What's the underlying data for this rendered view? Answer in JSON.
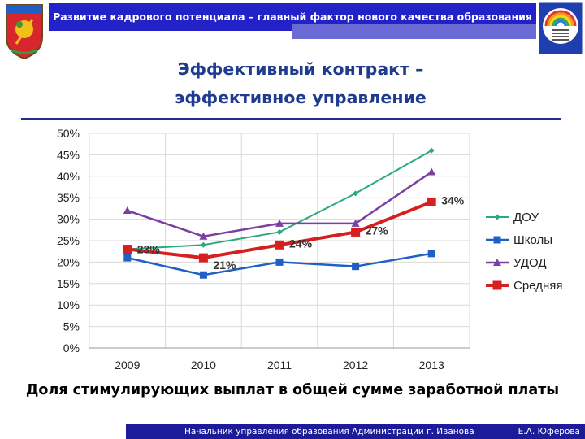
{
  "header": {
    "text": "Развитие кадрового потенциала – главный фактор нового качества образования"
  },
  "slide": {
    "title_line1": "Эффективный контракт –",
    "title_line2": "эффективное управление"
  },
  "chart_data": {
    "type": "line",
    "categories": [
      "2009",
      "2010",
      "2011",
      "2012",
      "2013"
    ],
    "ylim": [
      0,
      50
    ],
    "yticks": [
      "0%",
      "5%",
      "10%",
      "15%",
      "20%",
      "25%",
      "30%",
      "35%",
      "40%",
      "45%",
      "50%"
    ],
    "grid": true,
    "legend_position": "right",
    "series": [
      {
        "name": "ДОУ",
        "color": "#2aa880",
        "marker": "diamond",
        "values": [
          23,
          24,
          27,
          36,
          46
        ]
      },
      {
        "name": "Школы",
        "color": "#1f5fc6",
        "marker": "square",
        "values": [
          21,
          17,
          20,
          19,
          22
        ]
      },
      {
        "name": "УДОД",
        "color": "#7b3fa0",
        "marker": "triangle",
        "values": [
          32,
          26,
          29,
          29,
          41
        ]
      },
      {
        "name": "Средняя",
        "color": "#d62020",
        "marker": "square",
        "values": [
          23,
          21,
          24,
          27,
          34
        ]
      }
    ],
    "data_labels": [
      "23%",
      "21%",
      "24%",
      "27%",
      "34%"
    ]
  },
  "caption": "Доля стимулирующих выплат в общей сумме заработной платы",
  "footer": {
    "left": "Начальник управления образования Администрации  г. Иванова",
    "right": "Е.А. Юферова"
  },
  "icons": {
    "crest": "city-crest-icon",
    "badge": "education-department-badge-icon"
  }
}
